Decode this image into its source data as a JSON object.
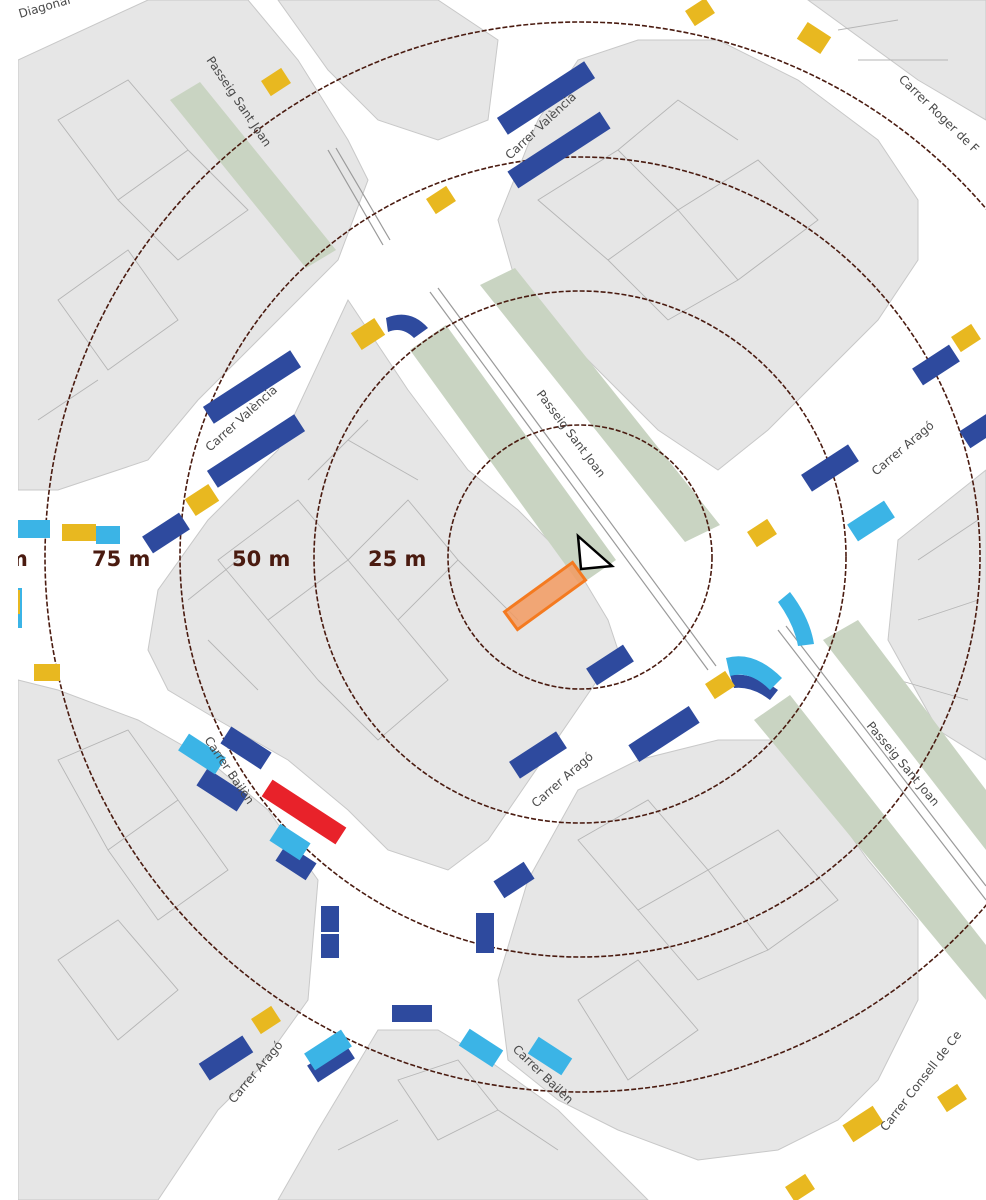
{
  "streets": {
    "diagonal": "Diagonal",
    "passeig_sant_joan": "Passeig Sant Joan",
    "carrer_valencia": "Carrer València",
    "carrer_arago": "Carrer Aragó",
    "carrer_bailen": "Carrer Bailèn",
    "carrer_roger_de_flor": "Carrer Roger de F",
    "carrer_consell_de_cent": "Carrer Consell de Ce"
  },
  "distance_rings": {
    "r25": "25 m",
    "r50": "50 m",
    "r75": "75 m",
    "r100_partial": "m"
  },
  "colors": {
    "block": "#e6e6e6",
    "building_outline": "#b5b5b5",
    "street": "#ffffff",
    "promenade_green": "#c9d4c2",
    "ring": "#4a1b10",
    "parking_dark_blue": "#2e4a9e",
    "parking_light_blue": "#3bb4e6",
    "parking_yellow": "#e8b820",
    "parking_red": "#e8222a",
    "site_orange": "#f29a60"
  },
  "icons": {
    "viewpoint": "viewpoint-triangle-icon",
    "site": "site-rectangle-icon"
  }
}
